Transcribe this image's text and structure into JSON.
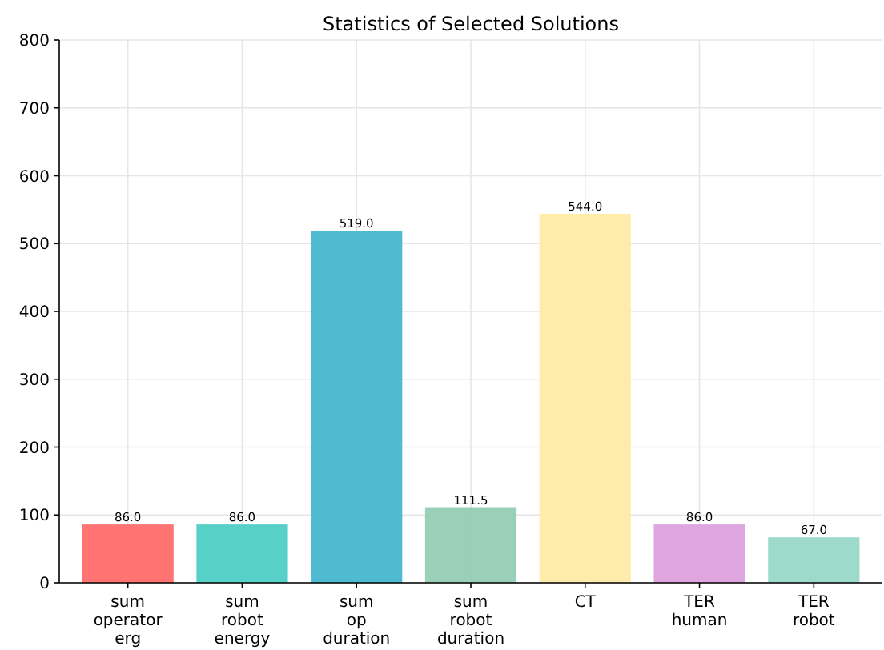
{
  "chart_data": {
    "type": "bar",
    "title": "Statistics of Selected Solutions",
    "categories": [
      "sum operator erg",
      "sum robot energy",
      "sum op duration",
      "sum robot duration",
      "CT",
      "TER human",
      "TER robot"
    ],
    "values": [
      86.0,
      86.0,
      519.0,
      111.5,
      544.0,
      86.0,
      67.0
    ],
    "colors": [
      "#ff6b6b",
      "#4ecdc4",
      "#45b7d1",
      "#96ceb4",
      "#ffeaa7",
      "#dda0dd",
      "#98d8c8"
    ],
    "value_labels": [
      "86.0",
      "86.0",
      "519.0",
      "111.5",
      "544.0",
      "86.0",
      "67.0"
    ],
    "ylim": [
      0,
      800
    ],
    "yticks": [
      0,
      100,
      200,
      300,
      400,
      500,
      600,
      700,
      800
    ],
    "grid": true
  }
}
